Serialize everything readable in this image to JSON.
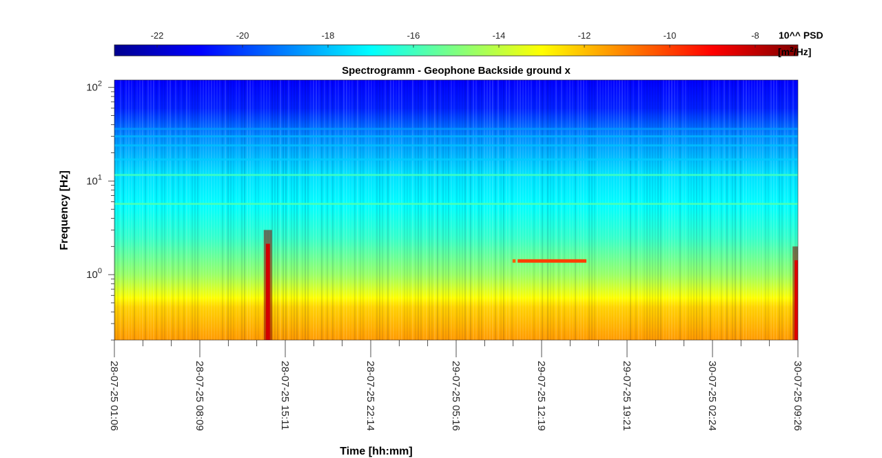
{
  "chart_data": {
    "type": "heatmap",
    "title": "Spectrogramm - Geophone Backside ground x",
    "xlabel": "Time [hh:mm]",
    "ylabel": "Frequency [Hz]",
    "x_ticks": [
      "28-07-25 01:06",
      "28-07-25 08:09",
      "28-07-25 15:11",
      "28-07-25 22:14",
      "29-07-25 05:16",
      "29-07-25 12:19",
      "29-07-25 19:21",
      "30-07-25 02:24",
      "30-07-25 09:26"
    ],
    "y_scale": "log",
    "y_ticks": [
      {
        "value": 1,
        "base": "10",
        "exp": "0"
      },
      {
        "value": 10,
        "base": "10",
        "exp": "1"
      },
      {
        "value": 100,
        "base": "10",
        "exp": "2"
      }
    ],
    "ylim": [
      0.2,
      120
    ],
    "colorbar": {
      "label_line1": "10^^ PSD",
      "label_line2_prefix": "[m",
      "label_line2_sup": "2",
      "label_line2_suffix": "/Hz]",
      "range": [
        -23,
        -7
      ],
      "ticks": [
        "-22",
        "-20",
        "-18",
        "-16",
        "-14",
        "-12",
        "-10",
        "-8"
      ],
      "colormap": "jet"
    },
    "log_psd_profile": [
      {
        "freq": 0.2,
        "value": -11.4
      },
      {
        "freq": 0.45,
        "value": -12.3
      },
      {
        "freq": 0.6,
        "value": -13.2
      },
      {
        "freq": 1.0,
        "value": -14.6
      },
      {
        "freq": 2.5,
        "value": -16.2
      },
      {
        "freq": 5.5,
        "value": -17.0
      },
      {
        "freq": 12,
        "value": -17.5
      },
      {
        "freq": 30,
        "value": -18.8
      },
      {
        "freq": 60,
        "value": -20.5
      },
      {
        "freq": 120,
        "value": -21.0
      }
    ],
    "horizontal_lines": [
      {
        "freq": 5.7,
        "value": -15.8
      },
      {
        "freq": 11.6,
        "value": -16.0
      },
      {
        "freq": 17,
        "value": -17.8
      },
      {
        "freq": 24,
        "value": -18.0
      },
      {
        "freq": 30,
        "value": -18.2
      },
      {
        "freq": 36,
        "value": -18.6
      }
    ],
    "vertical_events": [
      {
        "time": "28-07-25 13:45",
        "freq_max": 3.0,
        "value": -8.3
      },
      {
        "time": "30-07-25 09:20",
        "freq_max": 2.0,
        "value": -8.5
      }
    ],
    "tone_segments": [
      {
        "start": "29-07-25 09:55",
        "end": "29-07-25 10:10",
        "freq": 1.4,
        "value": -10.5
      },
      {
        "start": "29-07-25 10:20",
        "end": "29-07-25 16:00",
        "freq": 1.4,
        "value": -10.0
      }
    ]
  }
}
